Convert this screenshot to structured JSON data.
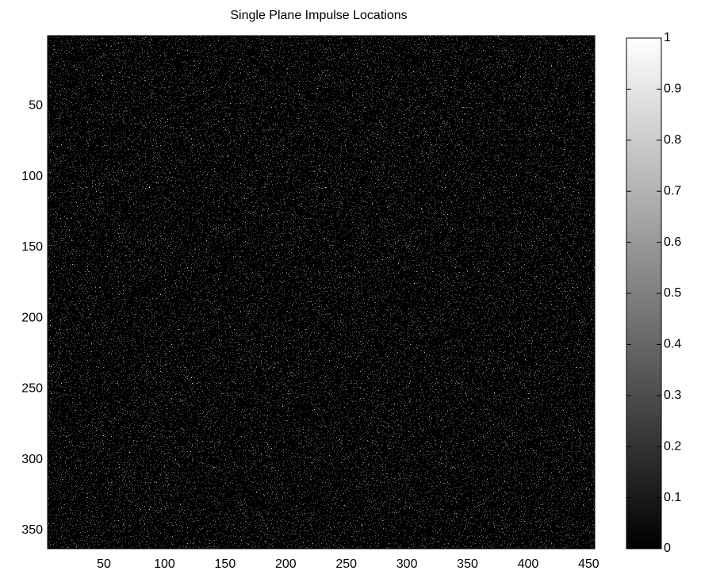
{
  "chart_data": {
    "type": "image",
    "title": "Single Plane Impulse Locations",
    "xlim": [
      3.5,
      455
    ],
    "ylim": [
      0.5,
      363
    ],
    "xticks": [
      50,
      100,
      150,
      200,
      250,
      300,
      350,
      400,
      450
    ],
    "yticks": [
      50,
      100,
      150,
      200,
      250,
      300,
      350
    ],
    "colorbar": {
      "clim": [
        0,
        1
      ],
      "ticks": [
        0,
        0.1,
        0.2,
        0.3,
        0.4,
        0.5,
        0.6,
        0.7,
        0.8,
        0.9,
        1
      ],
      "colors": [
        "#000000",
        "#ffffff"
      ]
    }
  }
}
